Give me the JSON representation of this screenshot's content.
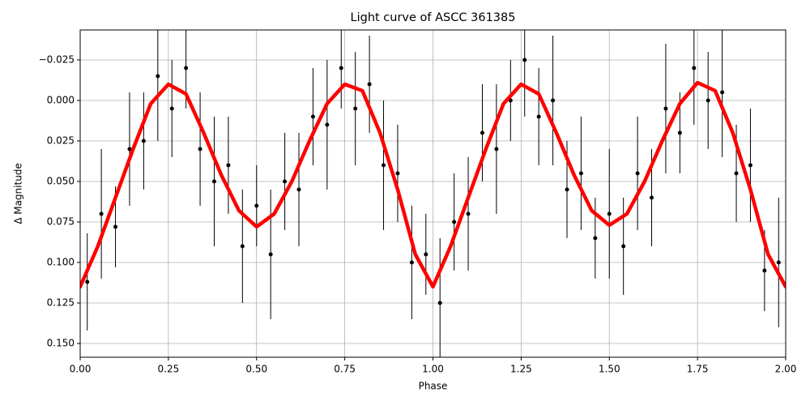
{
  "chart_data": {
    "type": "scatter",
    "title": "Light curve of ASCC 361385",
    "xlabel": "Phase",
    "ylabel": "Δ Magnitude",
    "xlim": [
      0,
      2
    ],
    "ylim": [
      -0.0435,
      0.1585
    ],
    "y_inverted": true,
    "grid": true,
    "xticks": [
      {
        "value": 0,
        "label": "0.00"
      },
      {
        "value": 0.25,
        "label": "0.25"
      },
      {
        "value": 0.5,
        "label": "0.50"
      },
      {
        "value": 0.75,
        "label": "0.75"
      },
      {
        "value": 1,
        "label": "1.00"
      },
      {
        "value": 1.25,
        "label": "1.25"
      },
      {
        "value": 1.5,
        "label": "1.50"
      },
      {
        "value": 1.75,
        "label": "1.75"
      },
      {
        "value": 2,
        "label": "2.00"
      }
    ],
    "yticks": [
      {
        "value": -0.025,
        "label": "−0.025"
      },
      {
        "value": 0,
        "label": "0.000"
      },
      {
        "value": 0.025,
        "label": "0.025"
      },
      {
        "value": 0.05,
        "label": "0.050"
      },
      {
        "value": 0.075,
        "label": "0.075"
      },
      {
        "value": 0.1,
        "label": "0.100"
      },
      {
        "value": 0.125,
        "label": "0.125"
      },
      {
        "value": 0.15,
        "label": "0.150"
      }
    ],
    "series": [
      {
        "type": "errorbar",
        "color": "#000000",
        "x": [
          0.02,
          0.06,
          0.1,
          0.14,
          0.18,
          0.22,
          0.26,
          0.3,
          0.34,
          0.38,
          0.42,
          0.46,
          0.5,
          0.54,
          0.58,
          0.62,
          0.66,
          0.7,
          0.74,
          0.78,
          0.82,
          0.86,
          0.9,
          0.94,
          0.98,
          1.02,
          1.06,
          1.1,
          1.14,
          1.18,
          1.22,
          1.26,
          1.3,
          1.34,
          1.38,
          1.42,
          1.46,
          1.5,
          1.54,
          1.58,
          1.62,
          1.66,
          1.7,
          1.74,
          1.78,
          1.82,
          1.86,
          1.9,
          1.94,
          1.98
        ],
        "values": [
          0.112,
          0.07,
          0.078,
          0.03,
          0.025,
          -0.015,
          0.005,
          -0.02,
          0.03,
          0.05,
          0.04,
          0.09,
          0.065,
          0.095,
          0.05,
          0.055,
          0.01,
          0.015,
          -0.02,
          0.005,
          -0.01,
          0.04,
          0.045,
          0.1,
          0.095,
          0.125,
          0.075,
          0.07,
          0.02,
          0.03,
          0.0,
          -0.025,
          0.01,
          0.0,
          0.055,
          0.045,
          0.085,
          0.07,
          0.09,
          0.045,
          0.06,
          0.005,
          0.02,
          -0.02,
          0.0,
          -0.005,
          0.045,
          0.04,
          0.105,
          0.1
        ],
        "errors": [
          0.03,
          0.04,
          0.025,
          0.035,
          0.03,
          0.04,
          0.03,
          0.025,
          0.035,
          0.04,
          0.03,
          0.035,
          0.025,
          0.04,
          0.03,
          0.035,
          0.03,
          0.04,
          0.025,
          0.035,
          0.03,
          0.04,
          0.03,
          0.035,
          0.025,
          0.04,
          0.03,
          0.035,
          0.03,
          0.04,
          0.025,
          0.035,
          0.03,
          0.04,
          0.03,
          0.035,
          0.025,
          0.04,
          0.03,
          0.035,
          0.03,
          0.04,
          0.025,
          0.035,
          0.03,
          0.04,
          0.03,
          0.035,
          0.025,
          0.04
        ]
      },
      {
        "type": "line",
        "color": "#ff0000",
        "x": [
          0,
          0.05,
          0.1,
          0.15,
          0.2,
          0.25,
          0.3,
          0.35,
          0.4,
          0.45,
          0.5,
          0.55,
          0.6,
          0.65,
          0.7,
          0.75,
          0.8,
          0.85,
          0.9,
          0.95,
          1.0,
          1.05,
          1.1,
          1.15,
          1.2,
          1.25,
          1.3,
          1.35,
          1.4,
          1.45,
          1.5,
          1.55,
          1.6,
          1.65,
          1.7,
          1.75,
          1.8,
          1.85,
          1.9,
          1.95,
          2.0
        ],
        "values": [
          0.115,
          0.09,
          0.06,
          0.03,
          0.002,
          -0.01,
          -0.004,
          0.02,
          0.046,
          0.068,
          0.078,
          0.07,
          0.05,
          0.025,
          0.002,
          -0.01,
          -0.006,
          0.02,
          0.055,
          0.095,
          0.115,
          0.09,
          0.06,
          0.03,
          0.002,
          -0.01,
          -0.004,
          0.02,
          0.046,
          0.068,
          0.077,
          0.07,
          0.05,
          0.025,
          0.002,
          -0.011,
          -0.006,
          0.02,
          0.055,
          0.095,
          0.115
        ]
      }
    ]
  }
}
